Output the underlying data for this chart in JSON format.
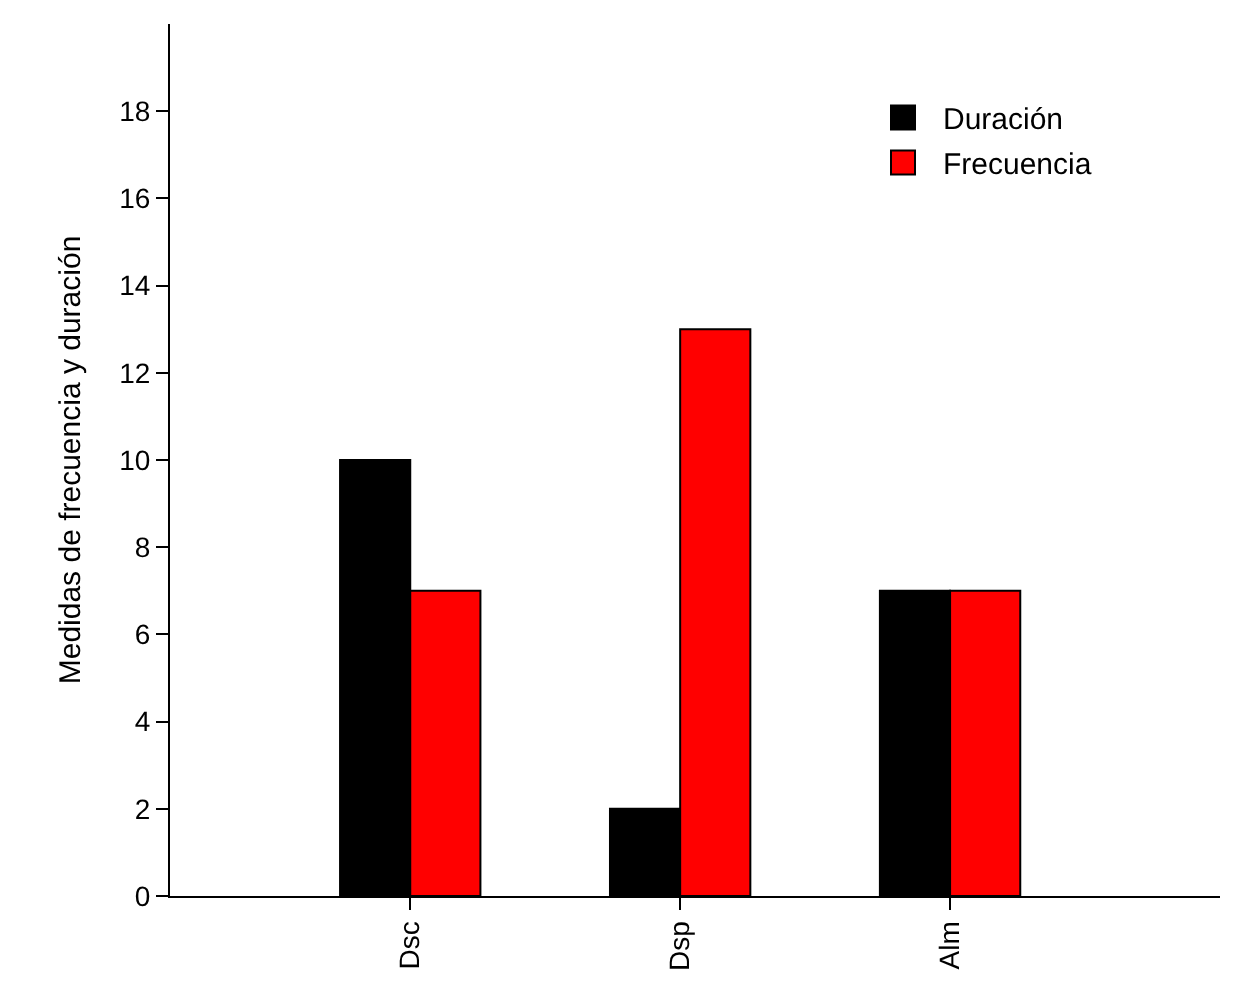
{
  "chart_data": {
    "type": "bar",
    "ylabel": "Medidas de frecuencia y duración",
    "categories": [
      "Dsc",
      "Dsp",
      "Alm"
    ],
    "series": [
      {
        "name": "Duración",
        "color": "#000000",
        "values": [
          10,
          2,
          7
        ]
      },
      {
        "name": "Frecuencia",
        "color": "#ff0000",
        "values": [
          7,
          13,
          7
        ]
      }
    ],
    "ylim": [
      0,
      20
    ],
    "yticks": [
      0,
      2,
      4,
      6,
      8,
      10,
      12,
      14,
      16,
      18
    ],
    "legend": "top right"
  }
}
